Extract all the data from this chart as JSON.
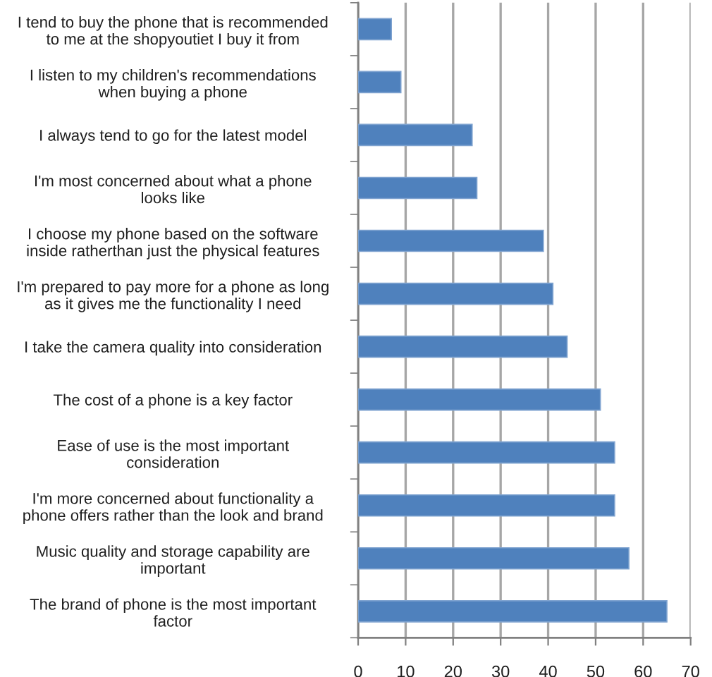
{
  "chart_data": {
    "type": "bar",
    "orientation": "horizontal",
    "categories": [
      "I tend to buy the phone that is recommended\nto me at the shopyoutiet I buy it from",
      "I listen to my children's recommendations\nwhen buying a phone",
      "I always tend to go for the latest model",
      "I'm most concerned about what a phone\nlooks like",
      "I choose my phone based on the software\ninside ratherthan just the physical features",
      "I'm prepared to pay more for a phone as long\nas it gives me the functionality I need",
      "I take the camera quality into consideration",
      "The cost of a phone is a key factor",
      "Ease of use is the most important\nconsideration",
      "I'm more concerned about functionality a\nphone offers rather than the look and brand",
      "Music quality and storage capability are\nimportant",
      "The brand of phone is the most important\nfactor"
    ],
    "values": [
      7,
      9,
      24,
      25,
      39,
      41,
      44,
      51,
      54,
      54,
      57,
      65
    ],
    "color": "#4f81bd",
    "xlim": [
      0,
      70
    ],
    "xticks": [
      0,
      10,
      20,
      30,
      40,
      50,
      60,
      70
    ],
    "grid": "x"
  }
}
